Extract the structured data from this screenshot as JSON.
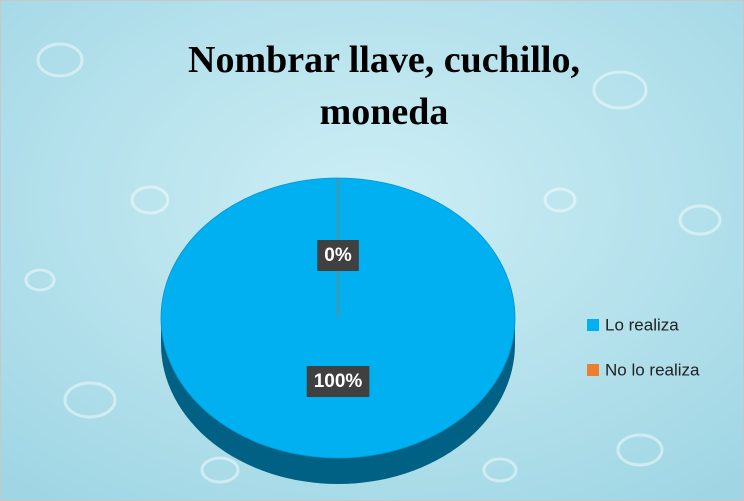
{
  "chart_data": {
    "type": "pie",
    "title": "Nombrar llave, cuchillo, moneda",
    "categories": [
      "Lo realiza",
      "No lo realiza"
    ],
    "values": [
      100,
      0
    ],
    "value_labels": [
      "100%",
      "0%"
    ],
    "colors": [
      "#00b0f0",
      "#ed7d31"
    ],
    "legend": "right"
  }
}
